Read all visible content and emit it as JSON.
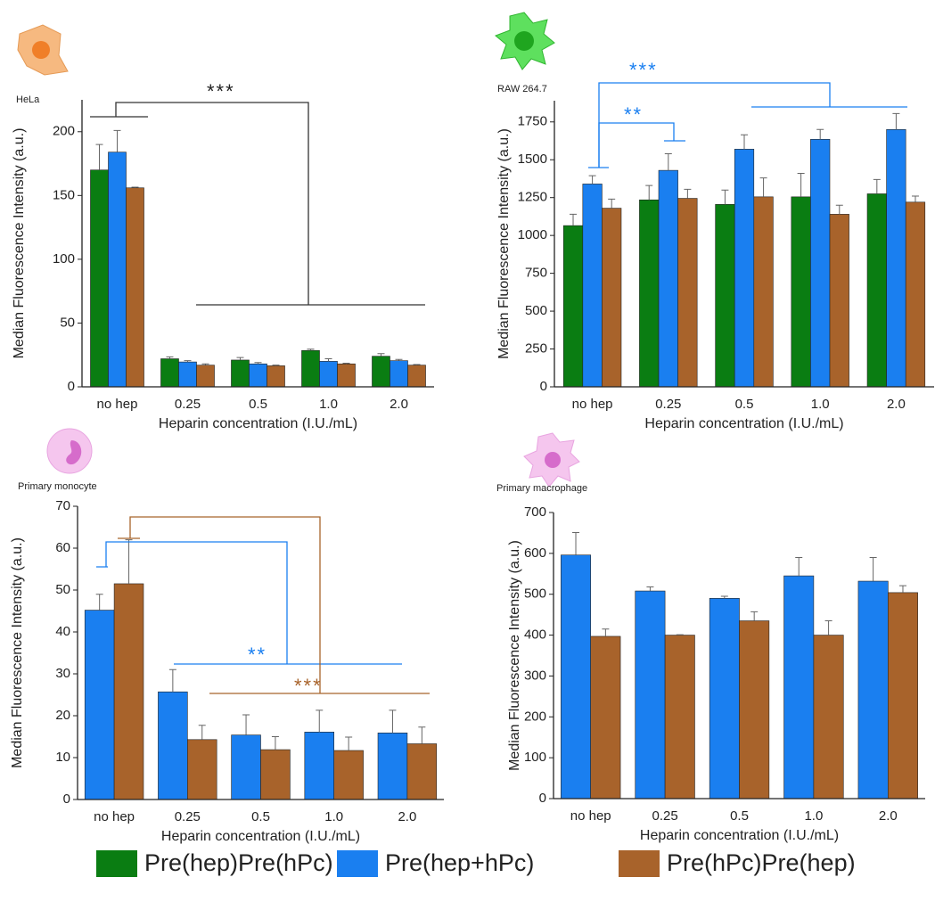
{
  "chart_data": [
    {
      "type": "bar",
      "title": "HeLa",
      "x_label": "Heparin concentration (I.U./mL)",
      "y_label": "Median Fluorescence Intensity (a.u.)",
      "categories": [
        "no hep",
        "0.25",
        "0.5",
        "1.0",
        "2.0"
      ],
      "series": [
        {
          "name": "Pre(hep)Pre(hPc)",
          "color": "#0a7d12",
          "values": [
            170,
            22,
            21,
            28.5,
            24
          ],
          "errors": [
            20,
            1.5,
            2,
            1,
            2
          ]
        },
        {
          "name": "Pre(hep+hPc)",
          "color": "#1a7ff0",
          "values": [
            184,
            19.5,
            18,
            20,
            20.5
          ],
          "errors": [
            17,
            1,
            1,
            2,
            1
          ]
        },
        {
          "name": "Pre(hPc)Pre(hep)",
          "color": "#a8632b",
          "values": [
            156,
            17,
            16.5,
            18,
            17
          ],
          "errors": [
            0.5,
            1,
            0.5,
            0.5,
            0.5
          ]
        }
      ],
      "ylim": [
        0,
        225
      ],
      "yticks": [
        0,
        50,
        100,
        150,
        200
      ],
      "annotations": [
        {
          "text": "***",
          "color": "#222222"
        }
      ]
    },
    {
      "type": "bar",
      "title": "RAW 264.7",
      "x_label": "Heparin concentration (I.U./mL)",
      "y_label": "Median Fluorescence Intensity (a.u.)",
      "categories": [
        "no hep",
        "0.25",
        "0.5",
        "1.0",
        "2.0"
      ],
      "series": [
        {
          "color": "#0a7d12",
          "values": [
            1065,
            1235,
            1205,
            1255,
            1275
          ],
          "errors": [
            75,
            95,
            95,
            155,
            95
          ]
        },
        {
          "color": "#1a7ff0",
          "values": [
            1340,
            1430,
            1570,
            1635,
            1700
          ],
          "errors": [
            55,
            110,
            95,
            65,
            105
          ]
        },
        {
          "color": "#a8632b",
          "values": [
            1180,
            1245,
            1255,
            1140,
            1220
          ],
          "errors": [
            60,
            60,
            125,
            60,
            40
          ]
        }
      ],
      "ylim": [
        0,
        1890
      ],
      "yticks": [
        0,
        250,
        500,
        750,
        1000,
        1250,
        1500,
        1750
      ],
      "annotations": [
        {
          "text": "***",
          "color": "#1a7ff0"
        },
        {
          "text": "**",
          "color": "#1a7ff0"
        }
      ]
    },
    {
      "type": "bar",
      "title": "Primary monocyte",
      "x_label": "Heparin concentration (I.U./mL)",
      "y_label": "Median Fluorescence Intensity (a.u.)",
      "categories": [
        "no hep",
        "0.25",
        "0.5",
        "1.0",
        "2.0"
      ],
      "series": [
        {
          "color": "#1a7ff0",
          "values": [
            45.2,
            25.7,
            15.4,
            16.1,
            15.9
          ],
          "errors": [
            3.8,
            5.3,
            4.8,
            5.2,
            5.4
          ]
        },
        {
          "color": "#a8632b",
          "values": [
            51.5,
            14.3,
            11.9,
            11.7,
            13.3
          ],
          "errors": [
            10.5,
            3.4,
            3.1,
            3.2,
            4
          ]
        }
      ],
      "ylim": [
        0,
        70
      ],
      "yticks": [
        0,
        10,
        20,
        30,
        40,
        50,
        60,
        70
      ],
      "annotations": [
        {
          "text": "**",
          "color": "#1a7ff0"
        },
        {
          "text": "***",
          "color": "#a8632b"
        }
      ]
    },
    {
      "type": "bar",
      "title": "Primary macrophage",
      "x_label": "Heparin concentration (I.U./mL)",
      "y_label": "Median Fluorescence Intensity (a.u.)",
      "categories": [
        "no hep",
        "0.25",
        "0.5",
        "1.0",
        "2.0"
      ],
      "series": [
        {
          "color": "#1a7ff0",
          "values": [
            596,
            508,
            490,
            545,
            532
          ],
          "errors": [
            55,
            10,
            5,
            45,
            58
          ]
        },
        {
          "color": "#a8632b",
          "values": [
            397,
            400,
            435,
            400,
            504
          ],
          "errors": [
            18,
            1,
            22,
            35,
            17
          ]
        }
      ],
      "ylim": [
        0,
        700
      ],
      "yticks": [
        0,
        100,
        200,
        300,
        400,
        500,
        600,
        700
      ],
      "annotations": []
    }
  ]
}
